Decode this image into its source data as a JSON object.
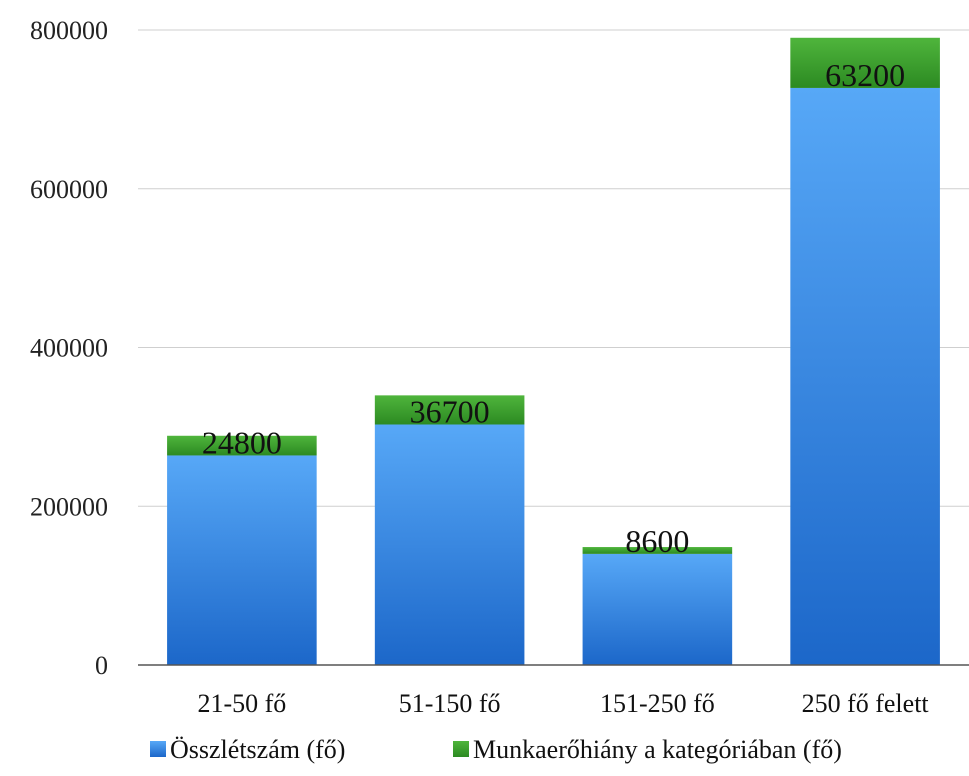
{
  "chart_data": {
    "type": "bar",
    "stacked": true,
    "categories": [
      "21-50 fő",
      "51-150 fő",
      "151-250 fő",
      "250 fő felett"
    ],
    "series": [
      {
        "name": "Összlétszám (fő)",
        "values": [
          264000,
          303000,
          140000,
          727000
        ],
        "color": "#3f8ee6"
      },
      {
        "name": "Munkaerőhiány a kategóriában (fő)",
        "values": [
          24800,
          36700,
          8600,
          63200
        ],
        "color": "#3f9f2e"
      }
    ],
    "data_labels": [
      "24800",
      "36700",
      "8600",
      "63200"
    ],
    "y_ticks": [
      "0",
      "200000",
      "400000",
      "600000",
      "800000"
    ],
    "ylim": [
      0,
      800000
    ],
    "grid": true,
    "legend_position": "bottom"
  }
}
